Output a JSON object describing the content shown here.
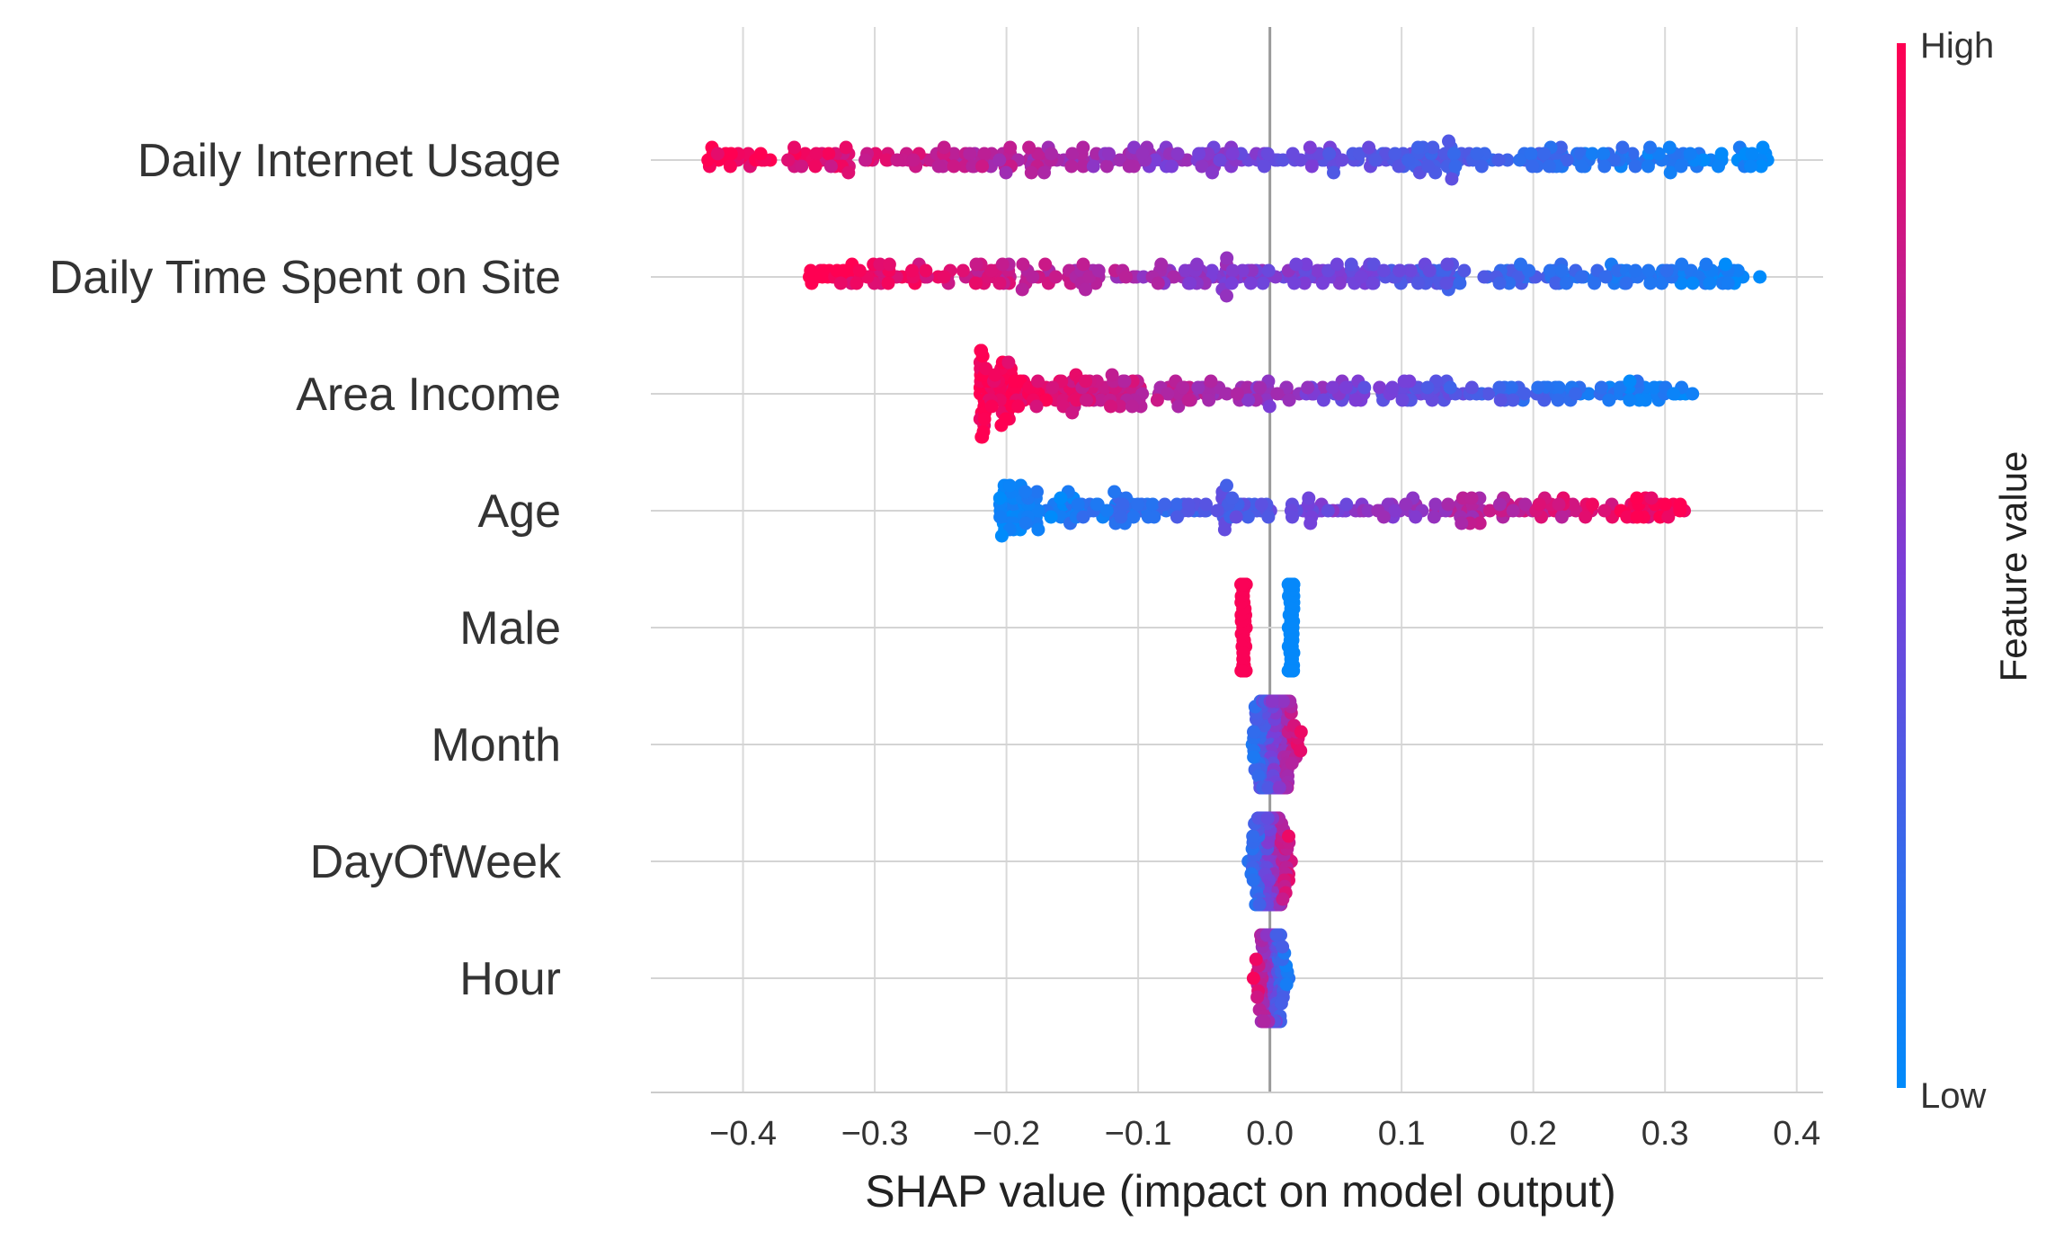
{
  "chart_data": {
    "type": "scatter",
    "subtype": "shap-beeswarm",
    "xlabel": "SHAP value (impact on model output)",
    "xlim": [
      -0.47,
      0.42
    ],
    "xticks": [
      -0.4,
      -0.3,
      -0.2,
      -0.1,
      0.0,
      0.1,
      0.2,
      0.3,
      0.4
    ],
    "xtick_labels": [
      "−0.4",
      "−0.3",
      "−0.2",
      "−0.1",
      "0.0",
      "0.1",
      "0.2",
      "0.3",
      "0.4"
    ],
    "grid": true,
    "colorbar": {
      "title": "Feature value",
      "high_label": "High",
      "low_label": "Low",
      "high_color": "#ff0052",
      "low_color": "#008bfb"
    },
    "features": [
      {
        "name": "Daily Internet Usage",
        "min": -0.43,
        "max": 0.38,
        "dir": -1,
        "dist": "wide",
        "count": 380
      },
      {
        "name": "Daily Time Spent on Site",
        "min": -0.35,
        "max": 0.375,
        "dir": -1,
        "dist": "wide",
        "count": 360
      },
      {
        "name": "Area Income",
        "min": -0.22,
        "max": 0.325,
        "dir": -1,
        "dist": "left",
        "count": 340
      },
      {
        "name": "Age",
        "min": -0.205,
        "max": 0.315,
        "dir": 1,
        "dist": "right",
        "count": 300
      },
      {
        "name": "Male",
        "min": -0.022,
        "max": 0.018,
        "dir": 0,
        "dist": "binary",
        "count": 160
      },
      {
        "name": "Month",
        "min": -0.022,
        "max": 0.028,
        "dir": 1,
        "dist": "narrow",
        "count": 200
      },
      {
        "name": "DayOfWeek",
        "min": -0.02,
        "max": 0.02,
        "dir": 1,
        "dist": "narrow",
        "count": 200
      },
      {
        "name": "Hour",
        "min": -0.015,
        "max": 0.017,
        "dir": -1,
        "dist": "narrow",
        "count": 180
      }
    ]
  }
}
